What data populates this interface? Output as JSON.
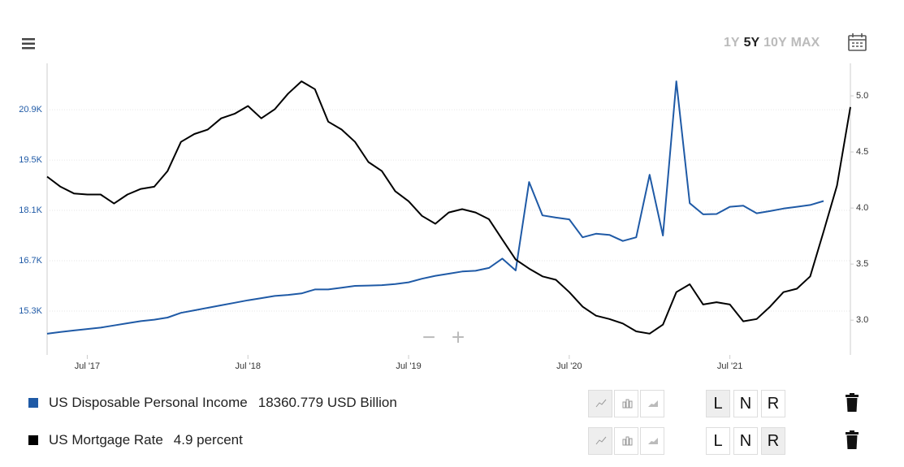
{
  "ui": {
    "ranges": [
      "1Y",
      "5Y",
      "10Y",
      "MAX"
    ],
    "zoom": [
      "−",
      "+"
    ],
    "axis_modes": [
      "L",
      "N",
      "R"
    ]
  },
  "chart_data": {
    "type": "line",
    "x": [
      "2017-04",
      "2017-05",
      "2017-06",
      "2017-07",
      "2017-08",
      "2017-09",
      "2017-10",
      "2017-11",
      "2017-12",
      "2018-01",
      "2018-02",
      "2018-03",
      "2018-04",
      "2018-05",
      "2018-06",
      "2018-07",
      "2018-08",
      "2018-09",
      "2018-10",
      "2018-11",
      "2018-12",
      "2019-01",
      "2019-02",
      "2019-03",
      "2019-04",
      "2019-05",
      "2019-06",
      "2019-07",
      "2019-08",
      "2019-09",
      "2019-10",
      "2019-11",
      "2019-12",
      "2020-01",
      "2020-02",
      "2020-03",
      "2020-04",
      "2020-05",
      "2020-06",
      "2020-07",
      "2020-08",
      "2020-09",
      "2020-10",
      "2020-11",
      "2020-12",
      "2021-01",
      "2021-02",
      "2021-03",
      "2021-04",
      "2021-05",
      "2021-06",
      "2021-07",
      "2021-08",
      "2021-09",
      "2021-10",
      "2021-11",
      "2021-12",
      "2022-01",
      "2022-02",
      "2022-03",
      "2022-04"
    ],
    "xlim": [
      "2017-04",
      "2022-04"
    ],
    "xticks": [
      {
        "value": "2017-07",
        "label": "Jul '17"
      },
      {
        "value": "2018-07",
        "label": "Jul '18"
      },
      {
        "value": "2019-07",
        "label": "Jul '19"
      },
      {
        "value": "2020-07",
        "label": "Jul '20"
      },
      {
        "value": "2021-07",
        "label": "Jul '21"
      }
    ],
    "ylim": [
      14080,
      22190
    ],
    "yticks": [
      {
        "value": 15300,
        "label": "15.3K"
      },
      {
        "value": 16700,
        "label": "16.7K"
      },
      {
        "value": 18100,
        "label": "18.1K"
      },
      {
        "value": 19500,
        "label": "19.5K"
      },
      {
        "value": 20900,
        "label": "20.9K"
      }
    ],
    "y2lim": [
      2.69,
      5.29
    ],
    "y2ticks": [
      {
        "value": 3,
        "label": "3.0"
      },
      {
        "value": 3.5,
        "label": "3.5"
      },
      {
        "value": 4,
        "label": "4.0"
      },
      {
        "value": 4.5,
        "label": "4.5"
      },
      {
        "value": 5,
        "label": "5.0"
      }
    ],
    "grid": true,
    "series": [
      {
        "name": "US Disposable Personal Income",
        "legend_value": "18360.779 USD Billion",
        "color": "#1f5aa6",
        "values": [
          14670,
          14720,
          14760,
          14800,
          14840,
          14900,
          14960,
          15020,
          15060,
          15120,
          15250,
          15320,
          15390,
          15460,
          15530,
          15600,
          15660,
          15720,
          15750,
          15790,
          15900,
          15900,
          15950,
          16000,
          16010,
          16020,
          16050,
          16100,
          16200,
          16280,
          16340,
          16400,
          16420,
          16500,
          16760,
          16430,
          18890,
          17960,
          17900,
          17850,
          17350,
          17450,
          17420,
          17250,
          17350,
          19090,
          17400,
          21690,
          18300,
          17990,
          18000,
          18200,
          18230,
          18020,
          18080,
          18150,
          18200,
          18250,
          18360.779,
          null,
          null
        ]
      },
      {
        "name": "US Mortgage Rate",
        "legend_value": "4.9 percent",
        "color": "#000000",
        "axis": "y2",
        "values": [
          4.28,
          4.19,
          4.13,
          4.12,
          4.12,
          4.04,
          4.12,
          4.17,
          4.19,
          4.33,
          4.59,
          4.66,
          4.7,
          4.8,
          4.84,
          4.91,
          4.8,
          4.88,
          5.02,
          5.13,
          5.06,
          4.77,
          4.7,
          4.59,
          4.41,
          4.33,
          4.15,
          4.06,
          3.93,
          3.86,
          3.96,
          3.99,
          3.96,
          3.9,
          3.72,
          3.54,
          3.46,
          3.39,
          3.36,
          3.25,
          3.12,
          3.04,
          3.01,
          2.97,
          2.9,
          2.88,
          2.96,
          3.25,
          3.32,
          3.14,
          3.16,
          3.14,
          2.99,
          3.01,
          3.12,
          3.25,
          3.28,
          3.39,
          3.79,
          4.2,
          4.9
        ]
      }
    ]
  }
}
